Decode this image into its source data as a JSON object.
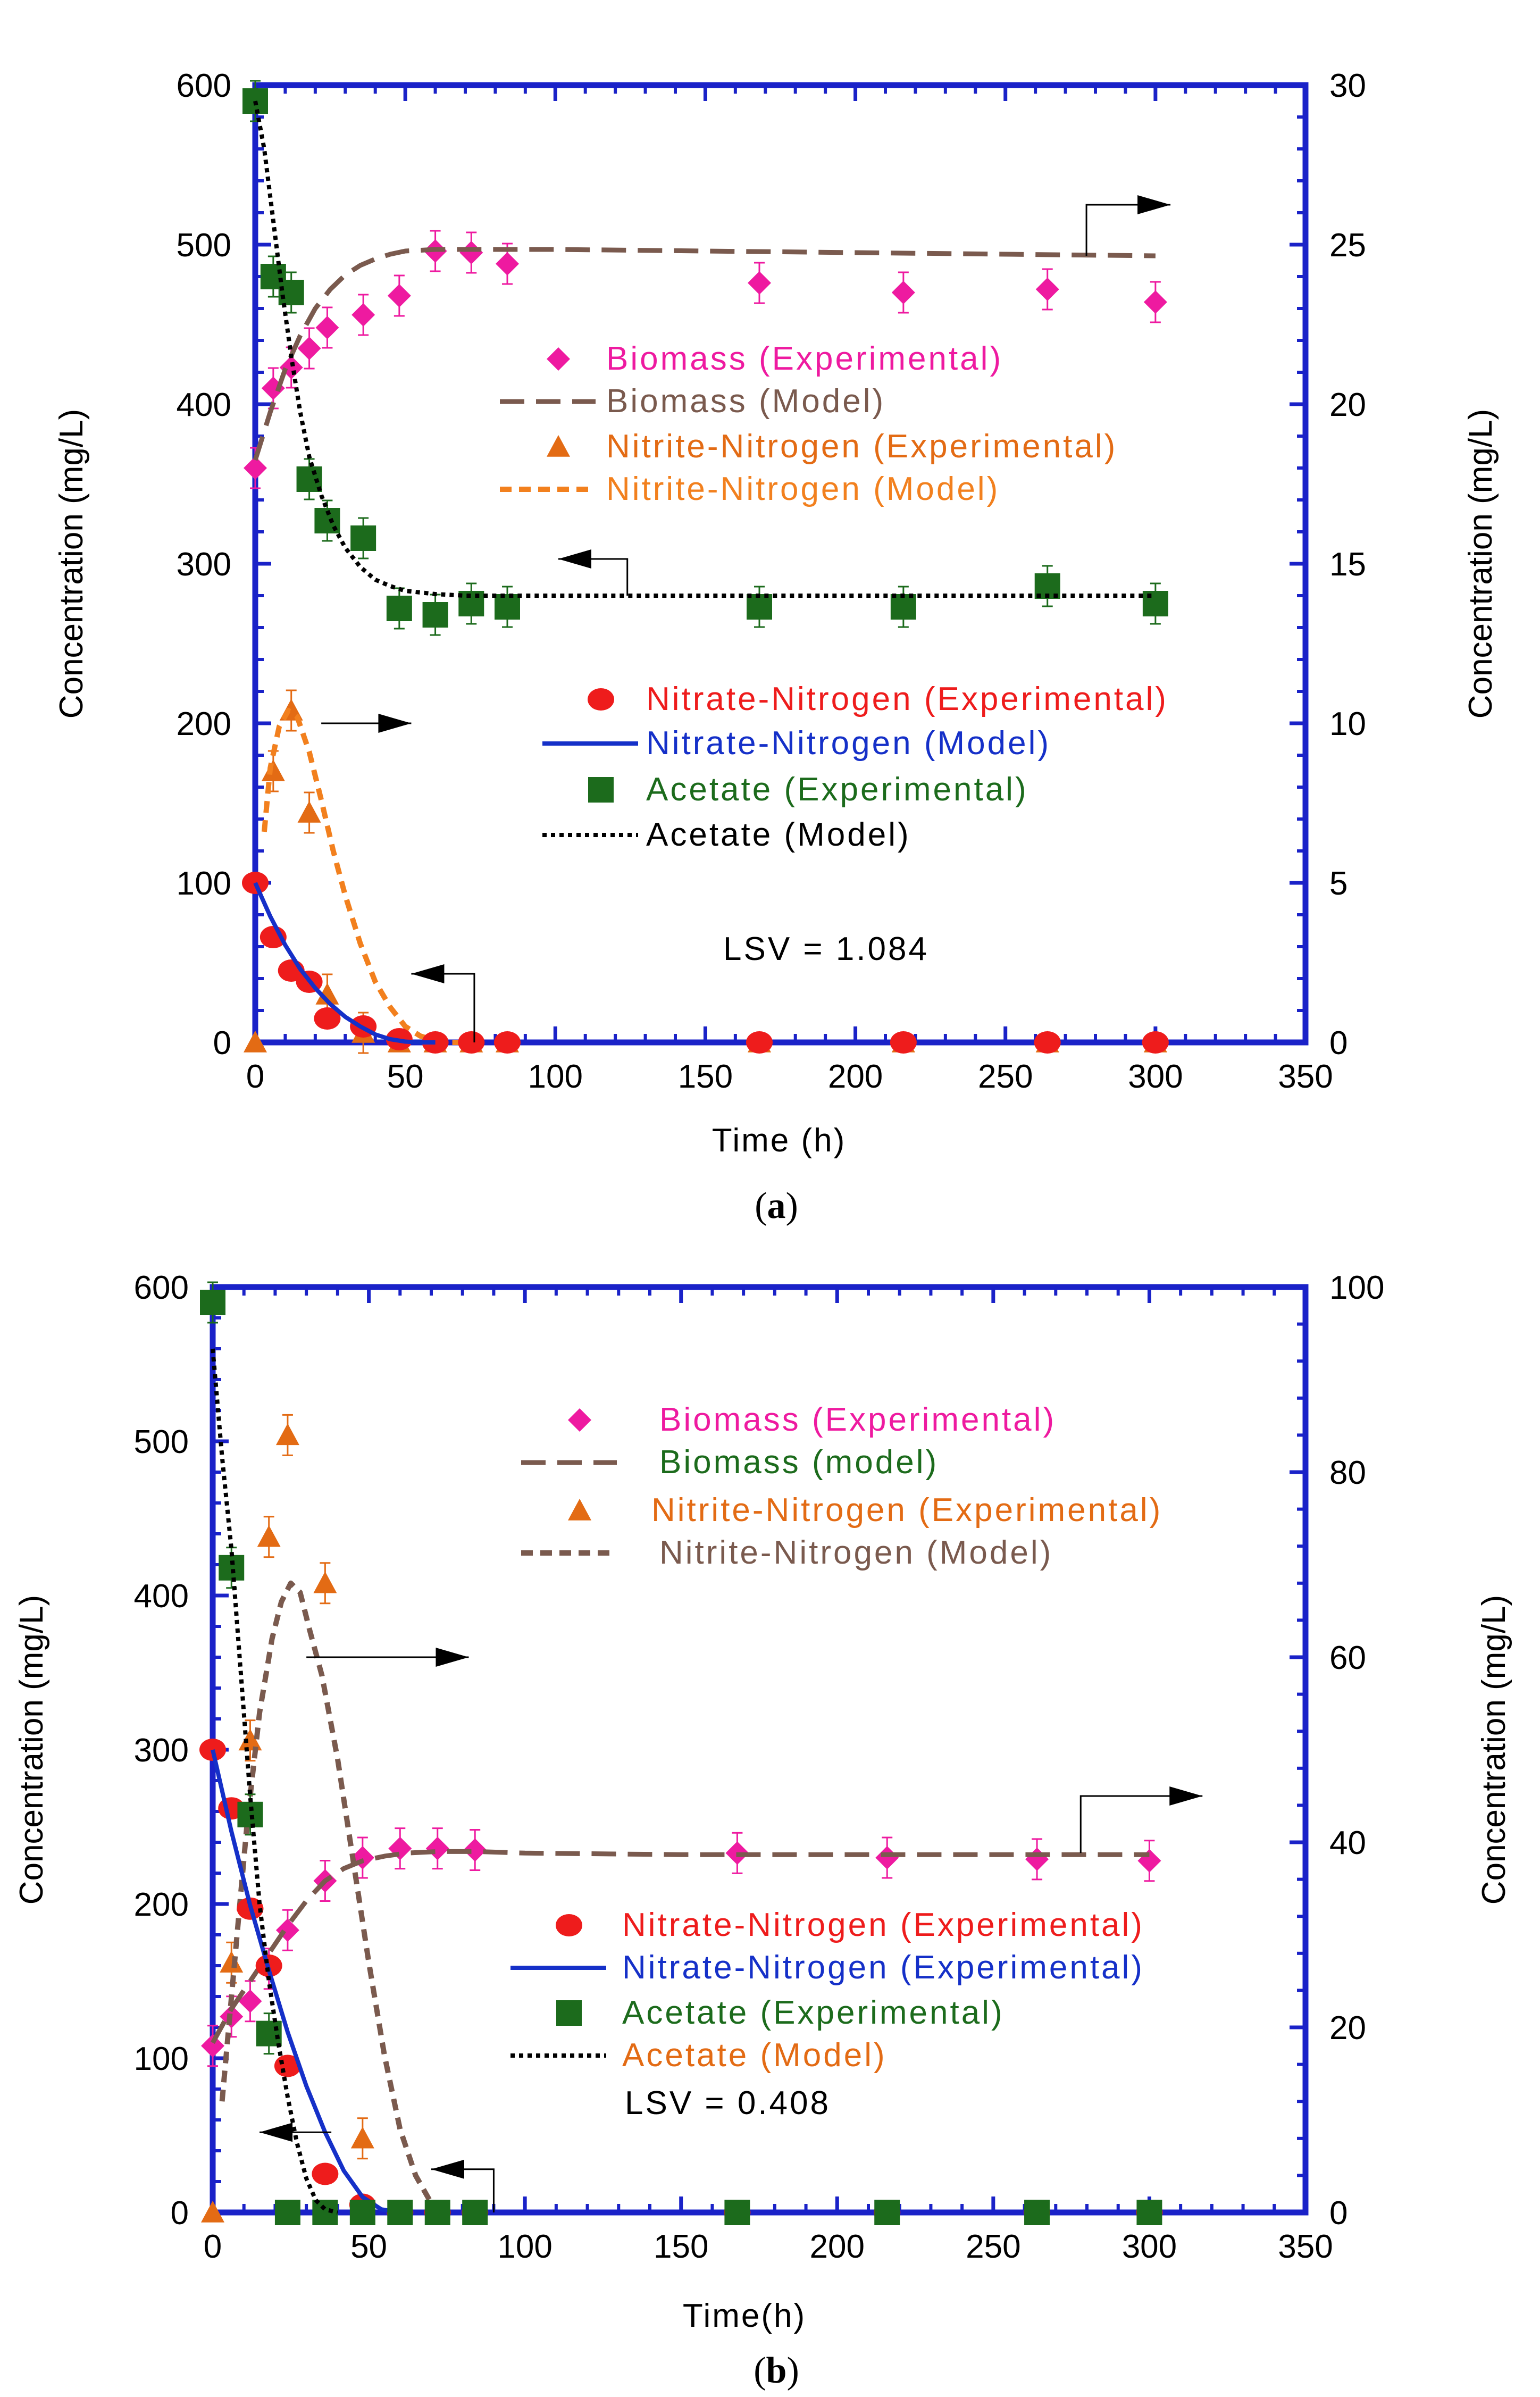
{
  "colors": {
    "frame": "#1a22c8",
    "biomass_exp": "#ee1aa0",
    "biomass_model": "#7a5a4e",
    "nitrite_exp": "#e36b14",
    "nitrite_model_a": "#f2801e",
    "nitrite_model_b": "#7a5a4e",
    "nitrate_exp": "#ee1c1c",
    "nitrate_model": "#1530c8",
    "acetate_exp": "#1c6b1c",
    "acetate_model": "#000000"
  },
  "chart_data": [
    {
      "type": "scatter",
      "panel_label": "(a)",
      "caption_letter": "a",
      "xlabel": "Time (h)",
      "ylabel_left": "Concentration (mg/L)",
      "ylabel_right": "Concentration (mg/L)",
      "xlim": [
        0,
        350
      ],
      "ylim_left": [
        0,
        600
      ],
      "ylim_right": [
        0,
        30
      ],
      "x_ticks": [
        "0",
        "50",
        "100",
        "150",
        "200",
        "250",
        "300",
        "350"
      ],
      "y_ticks_left": [
        "0",
        "100",
        "200",
        "300",
        "400",
        "500",
        "600"
      ],
      "y_ticks_right": [
        "0",
        "5",
        "10",
        "15",
        "20",
        "25",
        "30"
      ],
      "annotation": "LSV = 1.084",
      "series": [
        {
          "key": "biomass_exp",
          "name": "Biomass (Experimental)",
          "axis": "left",
          "marker": "diamond",
          "x": [
            0,
            6,
            12,
            18,
            24,
            36,
            48,
            60,
            72,
            84,
            168,
            216,
            264,
            300
          ],
          "y": [
            360,
            410,
            423,
            435,
            448,
            456,
            468,
            496,
            495,
            488,
            476,
            470,
            472,
            464
          ]
        },
        {
          "key": "biomass_model",
          "name": "Biomass (Model)",
          "axis": "left",
          "line": "longdash",
          "x": [
            0,
            5,
            10,
            15,
            20,
            25,
            30,
            35,
            40,
            45,
            50,
            60,
            70,
            85,
            100,
            150,
            200,
            250,
            300
          ],
          "y": [
            365,
            395,
            422,
            443,
            460,
            472,
            481,
            487,
            491,
            494,
            496,
            497,
            497,
            497,
            497,
            496,
            495,
            494,
            493
          ]
        },
        {
          "key": "nitrite_exp",
          "name": "Nitrite-Nitrogen (Experimental)",
          "axis": "right",
          "marker": "triangle",
          "x": [
            0,
            6,
            12,
            18,
            24,
            36,
            48,
            60,
            72,
            84,
            168,
            216,
            264,
            300
          ],
          "y": [
            0,
            8.5,
            10.4,
            7.2,
            1.5,
            0.3,
            0,
            0,
            0,
            0,
            0,
            0,
            0,
            0
          ]
        },
        {
          "key": "nitrite_model_a",
          "name": "Nitrite-Nitrogen (Model)",
          "axis": "right",
          "line": "dash",
          "x": [
            3,
            5,
            8,
            11,
            14,
            18,
            22,
            26,
            30,
            35,
            40,
            45,
            50,
            55,
            60,
            65,
            72
          ],
          "y": [
            6.6,
            8.6,
            9.9,
            10.4,
            10.2,
            9.1,
            7.6,
            6.0,
            4.6,
            3.1,
            1.9,
            1.1,
            0.5,
            0.2,
            0.05,
            0,
            0
          ]
        },
        {
          "key": "nitrate_exp",
          "name": "Nitrate-Nitrogen (Experimental)",
          "axis": "left",
          "marker": "circle",
          "x": [
            0,
            6,
            12,
            18,
            24,
            36,
            48,
            60,
            72,
            84,
            168,
            216,
            264,
            300
          ],
          "y": [
            100,
            66,
            45,
            38,
            15,
            10,
            2,
            0,
            0,
            0,
            0,
            0,
            0,
            0
          ]
        },
        {
          "key": "nitrate_model",
          "name": "Nitrate-Nitrogen (Model)",
          "axis": "left",
          "line": "solid",
          "x": [
            0,
            5,
            10,
            15,
            20,
            25,
            30,
            35,
            40,
            45,
            50,
            55,
            60
          ],
          "y": [
            100,
            79,
            61,
            46,
            34,
            24,
            16,
            10,
            5,
            2,
            0.5,
            0,
            0
          ]
        },
        {
          "key": "acetate_exp",
          "name": "Acetate (Experimental)",
          "axis": "left",
          "marker": "square",
          "x": [
            0,
            6,
            12,
            18,
            24,
            36,
            48,
            60,
            72,
            84,
            168,
            216,
            264,
            300
          ],
          "y": [
            590,
            480,
            470,
            353,
            327,
            316,
            272,
            268,
            275,
            273,
            273,
            273,
            286,
            275
          ]
        },
        {
          "key": "acetate_model",
          "name": "Acetate (Model)",
          "axis": "left",
          "line": "dot",
          "x": [
            0,
            3,
            6,
            9,
            12,
            15,
            18,
            22,
            26,
            30,
            35,
            40,
            45,
            50,
            55,
            60,
            70,
            80,
            100,
            150,
            200,
            250,
            300
          ],
          "y": [
            590,
            560,
            515,
            470,
            430,
            395,
            367,
            343,
            324,
            310,
            298,
            290,
            286,
            283,
            282,
            281,
            280,
            280,
            280,
            280,
            280,
            280,
            280
          ]
        }
      ],
      "arrows": [
        {
          "from": [
            277,
            493
          ],
          "corner": [
            277,
            525
          ],
          "to": [
            305,
            525
          ],
          "axis": "left"
        },
        {
          "from": [
            22,
            200
          ],
          "to": [
            52,
            200
          ],
          "axis": "left"
        },
        {
          "from": [
            124,
            280
          ],
          "corner": [
            124,
            303
          ],
          "to": [
            101,
            303
          ],
          "axis": "left"
        },
        {
          "from": [
            73,
            0
          ],
          "corner": [
            73,
            43
          ],
          "to": [
            52,
            43
          ],
          "axis": "left"
        }
      ]
    },
    {
      "type": "scatter",
      "panel_label": "(b)",
      "caption_letter": "b",
      "xlabel": "Time(h)",
      "ylabel_left": "Concentration (mg/L)",
      "ylabel_right": "Concentration (mg/L)",
      "xlim": [
        0,
        350
      ],
      "ylim_left": [
        0,
        600
      ],
      "ylim_right": [
        0,
        100
      ],
      "x_ticks": [
        "0",
        "50",
        "100",
        "150",
        "200",
        "250",
        "300",
        "350"
      ],
      "y_ticks_left": [
        "0",
        "100",
        "200",
        "300",
        "400",
        "500",
        "600"
      ],
      "y_ticks_right": [
        "0",
        "20",
        "40",
        "60",
        "80",
        "100"
      ],
      "annotation": "LSV = 0.408",
      "series": [
        {
          "key": "biomass_exp",
          "name": "Biomass (Experimental)",
          "axis": "left",
          "marker": "diamond",
          "x": [
            0,
            6,
            12,
            18,
            24,
            36,
            48,
            60,
            72,
            84,
            168,
            216,
            264,
            300
          ],
          "y": [
            108,
            127,
            137,
            158,
            183,
            215,
            230,
            236,
            236,
            235,
            233,
            230,
            229,
            228
          ]
        },
        {
          "key": "biomass_model",
          "name": "Biomass (model)",
          "axis": "left",
          "line": "longdash",
          "x": [
            0,
            6,
            12,
            18,
            24,
            30,
            36,
            42,
            48,
            55,
            62,
            72,
            85,
            100,
            150,
            200,
            250,
            300
          ],
          "y": [
            110,
            132,
            150,
            168,
            186,
            202,
            215,
            223,
            228,
            231,
            233,
            234,
            234,
            233,
            232,
            232,
            232,
            232
          ]
        },
        {
          "key": "nitrite_exp",
          "name": "Nitrite-Nitrogen (Experimental)",
          "axis": "right",
          "marker": "triangle",
          "x": [
            0,
            6,
            12,
            18,
            24,
            36,
            48,
            60,
            72,
            84,
            168,
            216,
            264,
            300
          ],
          "y": [
            0,
            27,
            51,
            73,
            84,
            68,
            8,
            0,
            0,
            0,
            0,
            0,
            0,
            0
          ]
        },
        {
          "key": "nitrite_model_b",
          "name": "Nitrite-Nitrogen (Model)",
          "axis": "right",
          "line": "dash",
          "x": [
            3,
            7,
            11,
            15,
            19,
            22,
            25,
            28,
            31,
            35,
            40,
            45,
            50,
            55,
            60,
            65,
            70,
            75
          ],
          "y": [
            12,
            27,
            42,
            54,
            62,
            66,
            68,
            67,
            63,
            58,
            49,
            38,
            27,
            17,
            9,
            4,
            1,
            0
          ]
        },
        {
          "key": "nitrate_exp",
          "name": "Nitrate-Nitrogen (Experimental)",
          "axis": "left",
          "marker": "circle",
          "x": [
            0,
            6,
            12,
            18,
            24,
            36,
            48,
            60,
            72,
            84,
            168,
            216,
            264,
            300
          ],
          "y": [
            300,
            262,
            197,
            160,
            95,
            25,
            5,
            0,
            0,
            0,
            0,
            0,
            0,
            0
          ]
        },
        {
          "key": "nitrate_model",
          "name": "Nitrate-Nitrogen (Experimental)",
          "axis": "left",
          "line": "solid",
          "x": [
            0,
            6,
            12,
            18,
            24,
            30,
            36,
            42,
            48,
            54,
            60
          ],
          "y": [
            300,
            247,
            199,
            157,
            117,
            82,
            52,
            27,
            10,
            2,
            0
          ]
        },
        {
          "key": "acetate_exp",
          "name": "Acetate (Experimental)",
          "axis": "left",
          "marker": "square",
          "x": [
            0,
            6,
            12,
            18,
            24,
            36,
            48,
            60,
            72,
            84,
            168,
            216,
            264,
            300
          ],
          "y": [
            590,
            418,
            258,
            116,
            0,
            0,
            0,
            0,
            0,
            0,
            0,
            0,
            0,
            0
          ]
        },
        {
          "key": "acetate_model",
          "name": "Acetate (Model)",
          "axis": "left",
          "line": "dot",
          "x": [
            0,
            3,
            6,
            9,
            12,
            15,
            18,
            21,
            24,
            27,
            30,
            33,
            36,
            40
          ],
          "y": [
            560,
            490,
            430,
            350,
            270,
            200,
            150,
            110,
            75,
            45,
            22,
            8,
            2,
            0
          ]
        }
      ],
      "arrows": [
        {
          "from": [
            30,
            360
          ],
          "to": [
            82,
            360
          ],
          "axis": "left"
        },
        {
          "from": [
            278,
            233
          ],
          "corner": [
            278,
            270
          ],
          "to": [
            317,
            270
          ],
          "axis": "left"
        },
        {
          "from": [
            38,
            52
          ],
          "to": [
            15,
            52
          ],
          "axis": "left"
        },
        {
          "from": [
            90,
            0
          ],
          "corner": [
            90,
            28
          ],
          "to": [
            70,
            28
          ],
          "axis": "left"
        }
      ]
    }
  ]
}
